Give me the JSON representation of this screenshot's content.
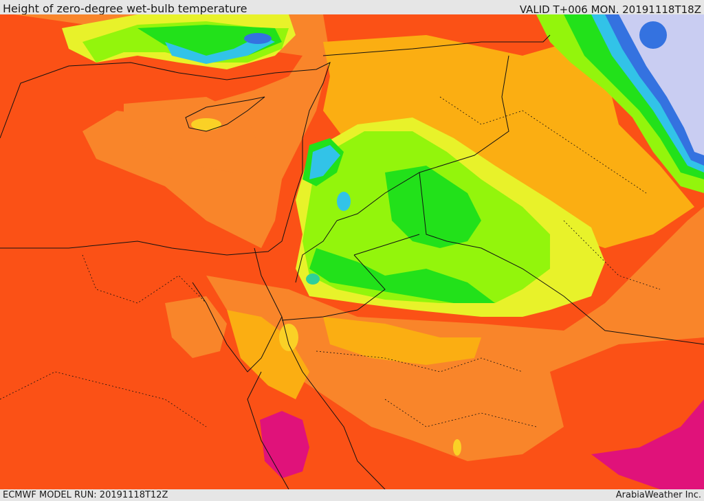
{
  "header": {
    "title": "Height of zero-degree wet-bulb temperature",
    "valid": "VALID T+006 MON. 20191118T18Z"
  },
  "footer": {
    "model_run": "ECMWF MODEL RUN: 20191118T12Z",
    "credit": "ArabiaWeather Inc."
  },
  "colors": {
    "sea": "#fb5116",
    "orange": "#f9852a",
    "amber": "#fbae12",
    "gold": "#fad126",
    "yellow": "#e8f22a",
    "lime": "#93f50c",
    "green": "#22e11a",
    "teal": "#2fcf9a",
    "cyan": "#32c3e8",
    "blue": "#3472e0",
    "lavender": "#c9cdf2",
    "magenta": "#e0127a",
    "border": "#111111"
  }
}
